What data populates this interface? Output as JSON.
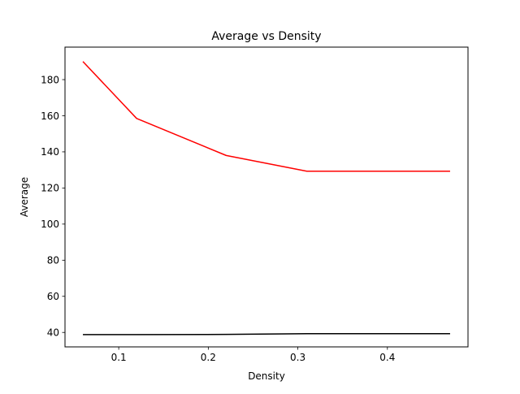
{
  "chart_data": {
    "type": "line",
    "title": "Average vs Density",
    "xlabel": "Density",
    "ylabel": "Average",
    "xlim": [
      0.04,
      0.49
    ],
    "ylim": [
      32,
      198
    ],
    "xticks": [
      0.1,
      0.2,
      0.3,
      0.4
    ],
    "xtick_labels": [
      "0.1",
      "0.2",
      "0.3",
      "0.4"
    ],
    "yticks": [
      40,
      60,
      80,
      100,
      120,
      140,
      160,
      180
    ],
    "ytick_labels": [
      "40",
      "60",
      "80",
      "100",
      "120",
      "140",
      "160",
      "180"
    ],
    "grid": false,
    "legend": false,
    "series": [
      {
        "color": "#ff0000",
        "x": [
          0.06,
          0.12,
          0.22,
          0.31,
          0.47
        ],
        "values": [
          190,
          158.5,
          138,
          129.3,
          129.3
        ]
      },
      {
        "color": "#000000",
        "x": [
          0.06,
          0.12,
          0.22,
          0.31,
          0.47
        ],
        "values": [
          38.8,
          38.8,
          38.9,
          39.3,
          39.3
        ]
      }
    ]
  }
}
